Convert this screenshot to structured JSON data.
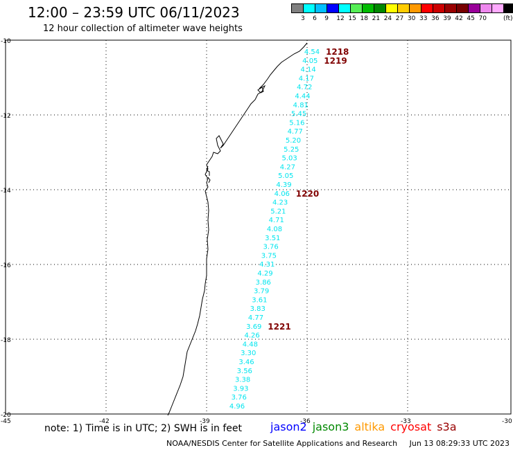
{
  "title": "12:00 – 23:59 UTC 06/11/2023",
  "subtitle": "12 hour collection of altimeter wave heights",
  "legend": {
    "colors": [
      "#808080",
      "#00ffff",
      "#00bfff",
      "#0000ff",
      "#00ffff",
      "#55ee55",
      "#00bb00",
      "#008800",
      "#ffff00",
      "#ffcc00",
      "#ff9900",
      "#ff0000",
      "#cc0000",
      "#990000",
      "#770000",
      "#990099",
      "#ee88ee",
      "#ffaaff",
      "#000000"
    ],
    "labels": [
      "3",
      "6",
      "9",
      "12",
      "15",
      "18",
      "21",
      "24",
      "27",
      "30",
      "33",
      "36",
      "39",
      "42",
      "45",
      "70",
      "(ft)"
    ]
  },
  "axes": {
    "lat_ticks": [
      "-10",
      "-12",
      "-14",
      "-16",
      "-18",
      "-20"
    ],
    "lon_ticks": [
      "-45",
      "-42",
      "-39",
      "-36",
      "-33",
      "-30"
    ]
  },
  "track_color": "#00e5ee",
  "time_color": "#800000",
  "swh_values": [
    "4.54",
    "4.05",
    "4.14",
    "4.17",
    "4.72",
    "4.44",
    "4.81",
    "5.45",
    "5.16",
    "4.77",
    "5.20",
    "5.25",
    "5.03",
    "4.27",
    "5.05",
    "4.39",
    "4.06",
    "4.23",
    "5.21",
    "4.71",
    "4.08",
    "3.51",
    "3.76",
    "3.75",
    "4.31",
    "4.29",
    "3.86",
    "3.79",
    "3.61",
    "3.83",
    "4.77",
    "3.69",
    "4.26",
    "4.48",
    "3.30",
    "3.46",
    "3.56",
    "3.38",
    "3.93",
    "3.76",
    "4.96"
  ],
  "time_labels": [
    "1218",
    "1219",
    "1220",
    "1221"
  ],
  "note": "note: 1) Time is in UTC; 2) SWH is in feet",
  "satellites": [
    {
      "name": "jason2",
      "color": "#0000ff"
    },
    {
      "name": "jason3",
      "color": "#008800"
    },
    {
      "name": "altika",
      "color": "#ff9900"
    },
    {
      "name": "cryosat",
      "color": "#ff0000"
    },
    {
      "name": "s3a",
      "color": "#990000"
    }
  ],
  "footer": {
    "org": "NOAA/NESDIS Center for Satellite Applications and Research",
    "timestamp": "Jun 13 08:29:33 UTC 2023"
  }
}
